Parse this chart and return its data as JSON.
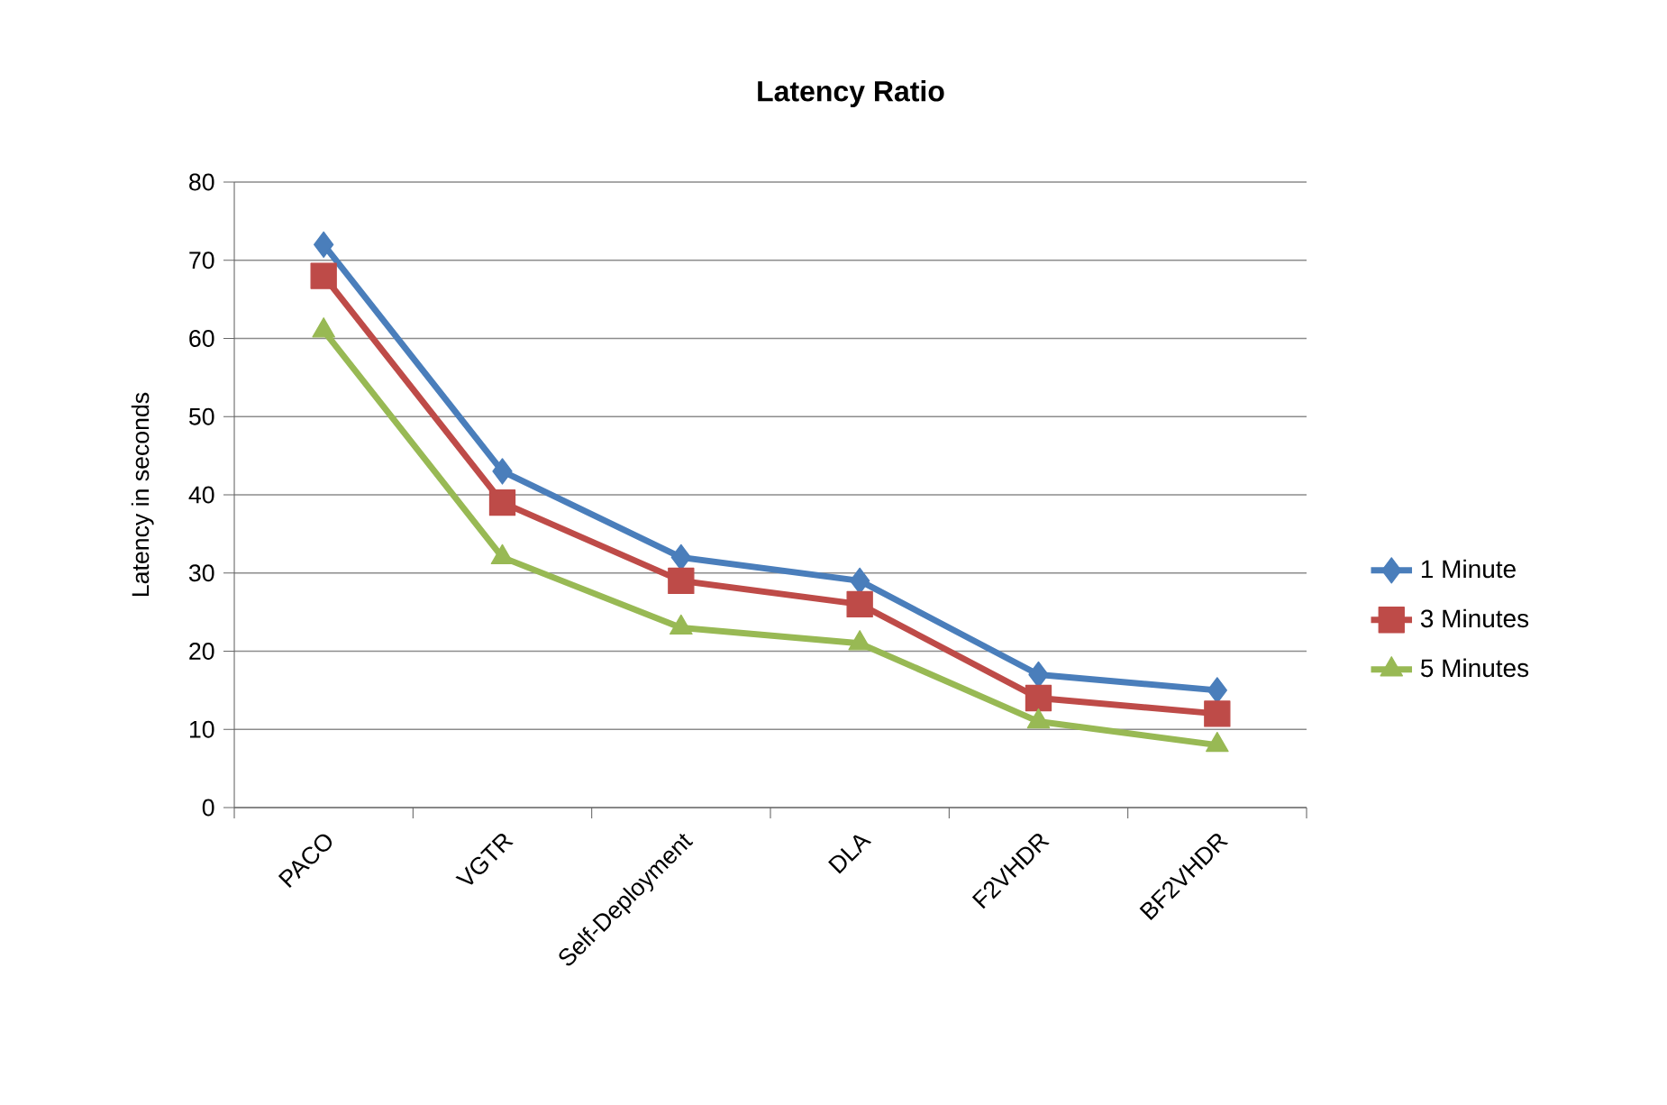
{
  "chart_data": {
    "type": "line",
    "title": "Latency Ratio",
    "ylabel": "Latency in seconds",
    "categories": [
      "PACO",
      "VGTR",
      "Self-Deployment",
      "DLA",
      "F2VHDR",
      "BF2VHDR"
    ],
    "series": [
      {
        "name": "1 Minute",
        "color": "#4a7ebb",
        "marker": "diamond",
        "values": [
          72,
          43,
          32,
          29,
          17,
          15
        ]
      },
      {
        "name": "3 Minutes",
        "color": "#be4b48",
        "marker": "square",
        "values": [
          68,
          39,
          29,
          26,
          14,
          12
        ]
      },
      {
        "name": "5 Minutes",
        "color": "#98b954",
        "marker": "triangle",
        "values": [
          61,
          32,
          23,
          21,
          11,
          8
        ]
      }
    ],
    "ylim": [
      0,
      80
    ],
    "yticks": [
      0,
      10,
      20,
      30,
      40,
      50,
      60,
      70,
      80
    ],
    "grid": "y",
    "legend": "right"
  }
}
